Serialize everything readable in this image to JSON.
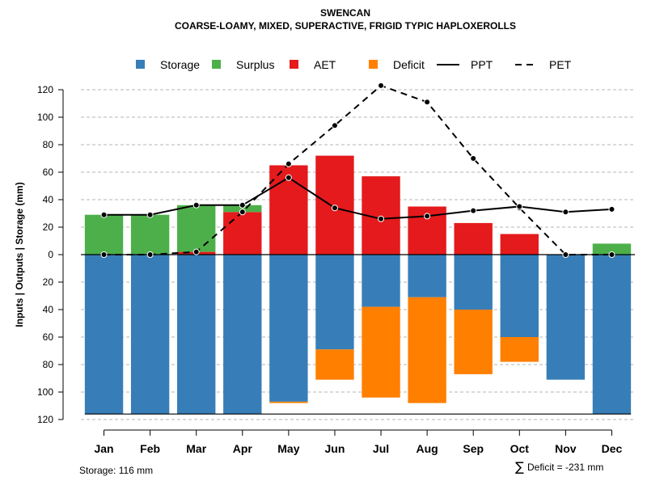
{
  "chart_data": {
    "type": "bar",
    "title": "SWENCAN",
    "subtitle": "COARSE-LOAMY, MIXED, SUPERACTIVE, FRIGID TYPIC HAPLOXEROLLS",
    "ylabel": "Inputs | Outputs | Storage    (mm)",
    "ylim": [
      -120,
      130
    ],
    "yticks": [
      -120,
      -100,
      -80,
      -60,
      -40,
      -20,
      0,
      20,
      40,
      60,
      80,
      100,
      120
    ],
    "ytick_labels": [
      "120",
      "100",
      "80",
      "60",
      "40",
      "20",
      "0",
      "20",
      "40",
      "60",
      "80",
      "100",
      "120"
    ],
    "grid": true,
    "categories": [
      "Jan",
      "Feb",
      "Mar",
      "Apr",
      "May",
      "Jun",
      "Jul",
      "Aug",
      "Sep",
      "Oct",
      "Nov",
      "Dec"
    ],
    "legend": {
      "position": "top",
      "items": [
        {
          "label": "Storage",
          "kind": "box",
          "color": "#377EB8"
        },
        {
          "label": "Surplus",
          "kind": "box",
          "color": "#4DAF4A"
        },
        {
          "label": "AET",
          "kind": "box",
          "color": "#E41A1C"
        },
        {
          "label": "Deficit",
          "kind": "box",
          "color": "#FF7F00"
        },
        {
          "label": "PPT",
          "kind": "solid",
          "color": "#000000"
        },
        {
          "label": "PET",
          "kind": "dashed",
          "color": "#000000"
        }
      ]
    },
    "series": [
      {
        "name": "AET",
        "color": "#E41A1C",
        "values": [
          0,
          0,
          2,
          31,
          65,
          72,
          57,
          35,
          23,
          15,
          0,
          0
        ]
      },
      {
        "name": "Surplus",
        "color": "#4DAF4A",
        "values": [
          29,
          29,
          34,
          5,
          0,
          0,
          0,
          0,
          0,
          0,
          0,
          8
        ]
      },
      {
        "name": "Storage",
        "color": "#377EB8",
        "values": [
          116,
          116,
          116,
          116,
          107,
          69,
          38,
          31,
          40,
          60,
          91,
          116
        ]
      },
      {
        "name": "Deficit",
        "color": "#FF7F00",
        "values": [
          0,
          0,
          0,
          0,
          1,
          22,
          66,
          77,
          47,
          18,
          0,
          0
        ]
      },
      {
        "name": "PPT",
        "color": "#000000",
        "values": [
          29,
          29,
          36,
          36,
          56,
          34,
          26,
          28,
          32,
          35,
          31,
          33
        ]
      },
      {
        "name": "PET",
        "color": "#000000",
        "values": [
          0,
          0,
          2,
          31,
          66,
          94,
          123,
          111,
          70,
          34,
          0,
          0
        ]
      }
    ],
    "storage_line": -116,
    "annotations": {
      "storage": "Storage: 116 mm",
      "deficit_symbol": "∑",
      "deficit": "Deficit = -231 mm"
    }
  }
}
